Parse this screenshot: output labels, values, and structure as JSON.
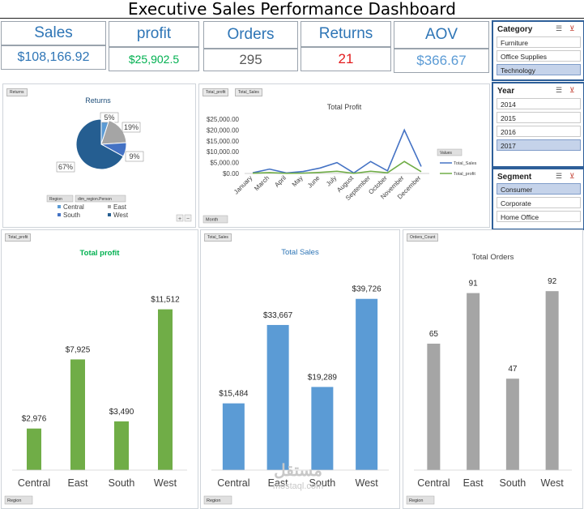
{
  "title": "Executive Sales Performance Dashboard",
  "kpis": {
    "sales_label": "Sales",
    "sales_value": "$108,166.92",
    "profit_label": "profit",
    "profit_value": "$25,902.5",
    "orders_label": "Orders",
    "orders_value": "295",
    "returns_label": "Returns",
    "returns_value": "21",
    "aov_label": "AOV",
    "aov_value": "$366.67"
  },
  "colors": {
    "blue": "#5b9bd5",
    "green": "#70ad47",
    "grey": "#a5a5a5",
    "navy": "#255e91",
    "title_blue": "#2e75b6",
    "title_green": "#00b050",
    "red": "#e31a1c"
  },
  "returns_panel": {
    "tag": "Returns",
    "chart_title": "Returns",
    "field_region": "Region",
    "field_person": "dim_region.Person",
    "legend": [
      "Central",
      "East",
      "South",
      "West"
    ]
  },
  "profit_line_panel": {
    "tag1": "Total_profit",
    "tag2": "Total_Sales",
    "chart_title": "Total Profit",
    "legend_title": "Values",
    "legend_sales": "Total_Sales",
    "legend_profit": "Total_profit",
    "month_field": "Month"
  },
  "bar_profit_panel": {
    "tag": "Total_profit",
    "chart_title": "Total profit",
    "region_field": "Region"
  },
  "bar_sales_panel": {
    "tag": "Total_Sales",
    "chart_title": "Total Sales",
    "region_field": "Region"
  },
  "bar_orders_panel": {
    "tag": "Orders_Count",
    "chart_title": "Total Orders",
    "region_field": "Region"
  },
  "slicers": {
    "category": {
      "title": "Category",
      "items": [
        "Furniture",
        "Office Supplies",
        "Technology"
      ],
      "selected": "Technology"
    },
    "year": {
      "title": "Year",
      "items": [
        "2014",
        "2015",
        "2016",
        "2017"
      ],
      "selected": "2017"
    },
    "segment": {
      "title": "Segment",
      "items": [
        "Consumer",
        "Corporate",
        "Home Office"
      ],
      "selected": "Consumer"
    }
  },
  "watermark": {
    "arabic": "مستقل",
    "latin": "mostaql.com"
  },
  "chart_data": [
    {
      "type": "pie",
      "title": "Returns",
      "categories": [
        "Central",
        "East",
        "South",
        "West"
      ],
      "values": [
        5,
        19,
        9,
        67
      ],
      "labels": [
        "5%",
        "19%",
        "9%",
        "67%"
      ]
    },
    {
      "type": "line",
      "title": "Total Profit",
      "x": [
        "January",
        "March",
        "April",
        "May",
        "June",
        "July",
        "August",
        "September",
        "October",
        "November",
        "December"
      ],
      "series": [
        {
          "name": "Total_Sales",
          "values": [
            300,
            2000,
            200,
            900,
            2500,
            5000,
            200,
            5500,
            1200,
            20000,
            3200
          ]
        },
        {
          "name": "Total_profit",
          "values": [
            100,
            400,
            50,
            150,
            500,
            1000,
            50,
            1000,
            300,
            5500,
            800
          ]
        }
      ],
      "ylim": [
        0,
        25000
      ],
      "yticks": [
        "$0.00",
        "$5,000.00",
        "$10,000.00",
        "$15,000.00",
        "$20,000.00",
        "$25,000.00"
      ]
    },
    {
      "type": "bar",
      "title": "Total profit",
      "categories": [
        "Central",
        "East",
        "South",
        "West"
      ],
      "values": [
        2976,
        7925,
        3490,
        11512
      ],
      "labels": [
        "$2,976",
        "$7,925",
        "$3,490",
        "$11,512"
      ],
      "ylim": [
        0,
        13000
      ]
    },
    {
      "type": "bar",
      "title": "Total Sales",
      "categories": [
        "Central",
        "East",
        "South",
        "West"
      ],
      "values": [
        15484,
        33667,
        19289,
        39726
      ],
      "labels": [
        "$15,484",
        "$33,667",
        "$19,289",
        "$39,726"
      ],
      "ylim": [
        0,
        44000
      ]
    },
    {
      "type": "bar",
      "title": "Total Orders",
      "categories": [
        "Central",
        "East",
        "South",
        "West"
      ],
      "values": [
        65,
        91,
        47,
        92
      ],
      "labels": [
        "65",
        "91",
        "47",
        "92"
      ],
      "ylim": [
        0,
        100
      ]
    }
  ]
}
